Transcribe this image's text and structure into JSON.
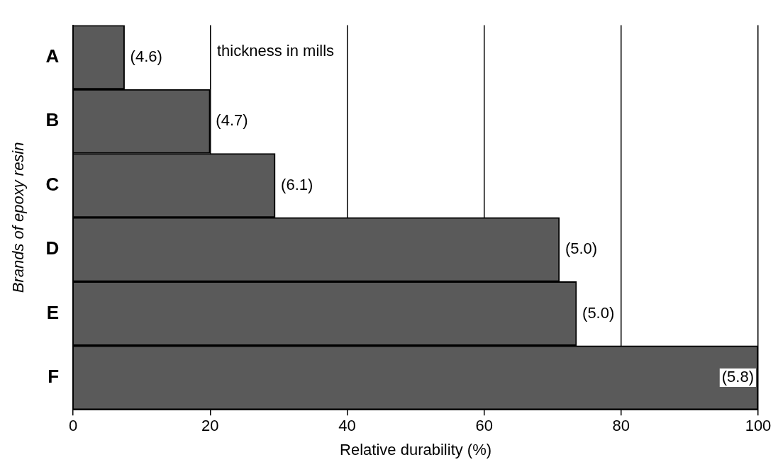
{
  "chart_data": {
    "type": "bar",
    "orientation": "horizontal",
    "categories": [
      "A",
      "B",
      "C",
      "D",
      "E",
      "F"
    ],
    "values": [
      7.5,
      20,
      29.5,
      71,
      73.5,
      100
    ],
    "color": "#5a5a5a",
    "xlim": [
      0,
      100
    ],
    "xticks": [
      0,
      20,
      40,
      60,
      80,
      100
    ],
    "xlabel": "Relative durability (%)",
    "ylabel": "Brands of epoxy resin",
    "annotations": [
      "thickness in mills",
      {
        "text": "(4.6)",
        "x": 7.5,
        "y": "A"
      },
      {
        "text": "(4.7)",
        "x": 20,
        "y": "B"
      },
      {
        "text": "(6.1)",
        "x": 29.5,
        "y": "C"
      },
      {
        "text": "(5.0)",
        "x": 71,
        "y": "D"
      },
      {
        "text": "(5.0)",
        "x": 73.5,
        "y": "E"
      },
      {
        "text": "(5.8)",
        "x": 100,
        "y": "F"
      }
    ],
    "grid": "x",
    "legend": false
  }
}
